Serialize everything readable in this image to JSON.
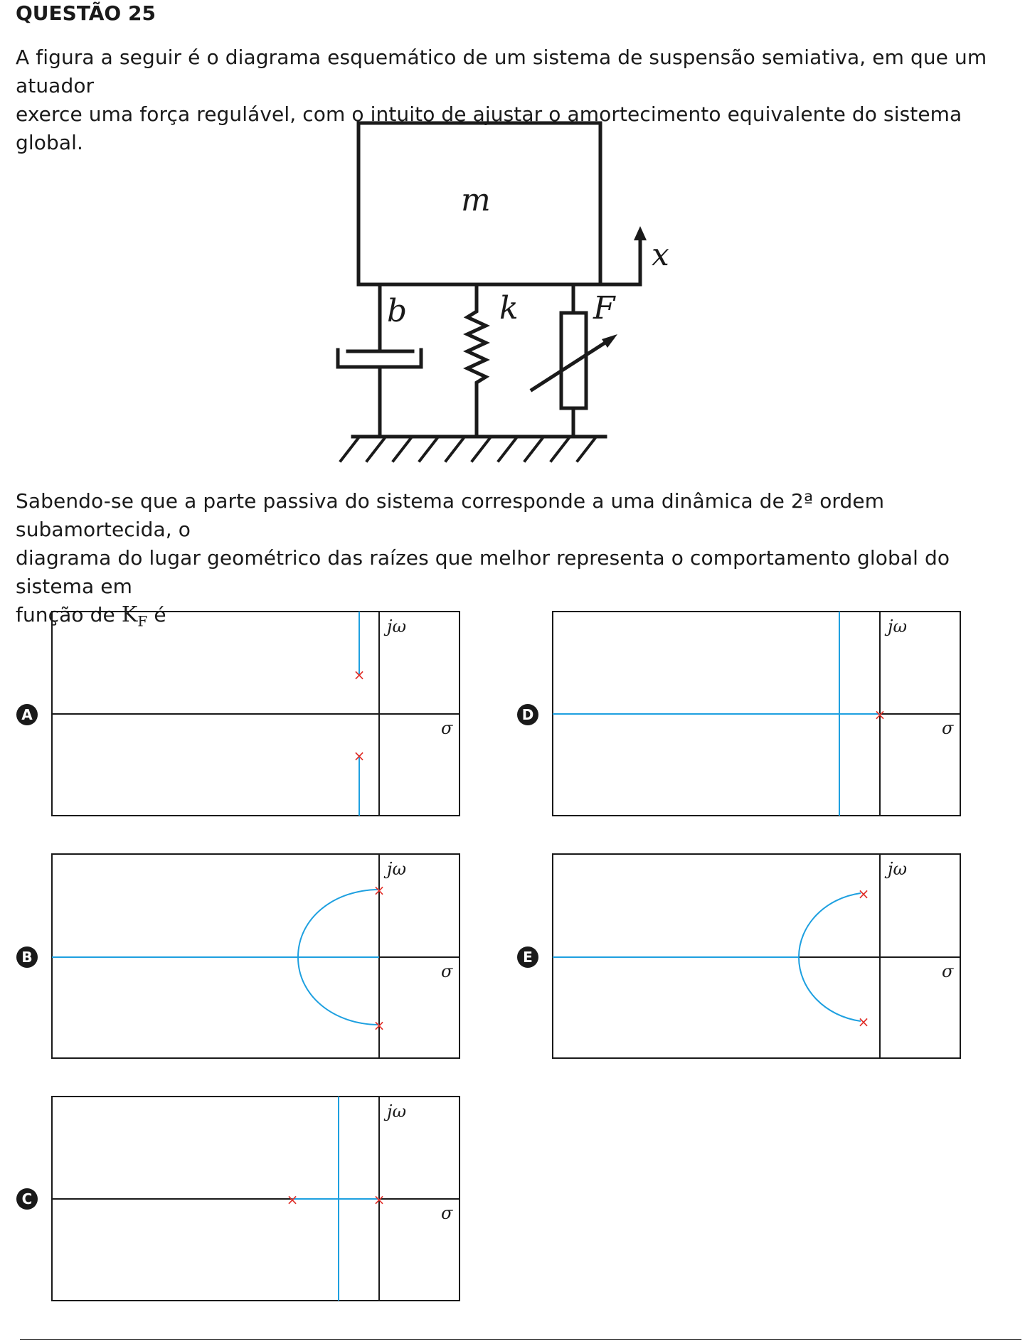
{
  "question": {
    "title": "QUESTÃO 25",
    "intro_line1": "A figura a seguir é o diagrama esquemático de um sistema de suspensão semiativa, em que um atuador",
    "intro_line2": "exerce uma força regulável, com o intuito de ajustar o amortecimento equivalente do sistema global.",
    "body_line1": "Sabendo-se que a parte passiva do sistema corresponde a uma dinâmica de 2ª ordem subamortecida, o",
    "body_line2": "diagrama do lugar geométrico das raízes que melhor representa o comportamento global do sistema em",
    "body_line3_prefix": "função de ",
    "body_line3_symbol": "K",
    "body_line3_subscript": "F",
    "body_line3_suffix": " é"
  },
  "schematic": {
    "mass_label": "m",
    "displacement_label": "x",
    "damper_label": "b",
    "spring_label": "k",
    "actuator_label": "F"
  },
  "axis_labels": {
    "imaginary": "jω",
    "real": "σ"
  },
  "options": [
    {
      "letter": "A",
      "locus": "poles on imaginary branch, vertical lines toward ±j∞"
    },
    {
      "letter": "B",
      "locus": "poles on imaginary axis, semicircle to real axis, then left"
    },
    {
      "letter": "C",
      "locus": "two real poles, breakaway then vertical"
    },
    {
      "letter": "D",
      "locus": "double pole at origin, horizontal and vertical branches"
    },
    {
      "letter": "E",
      "locus": "complex poles in left half-plane, semicircle to real axis, then left"
    }
  ],
  "colors": {
    "locus": "#1ea0e0",
    "pole": "#e0302a",
    "ink": "#1a1a1a"
  }
}
